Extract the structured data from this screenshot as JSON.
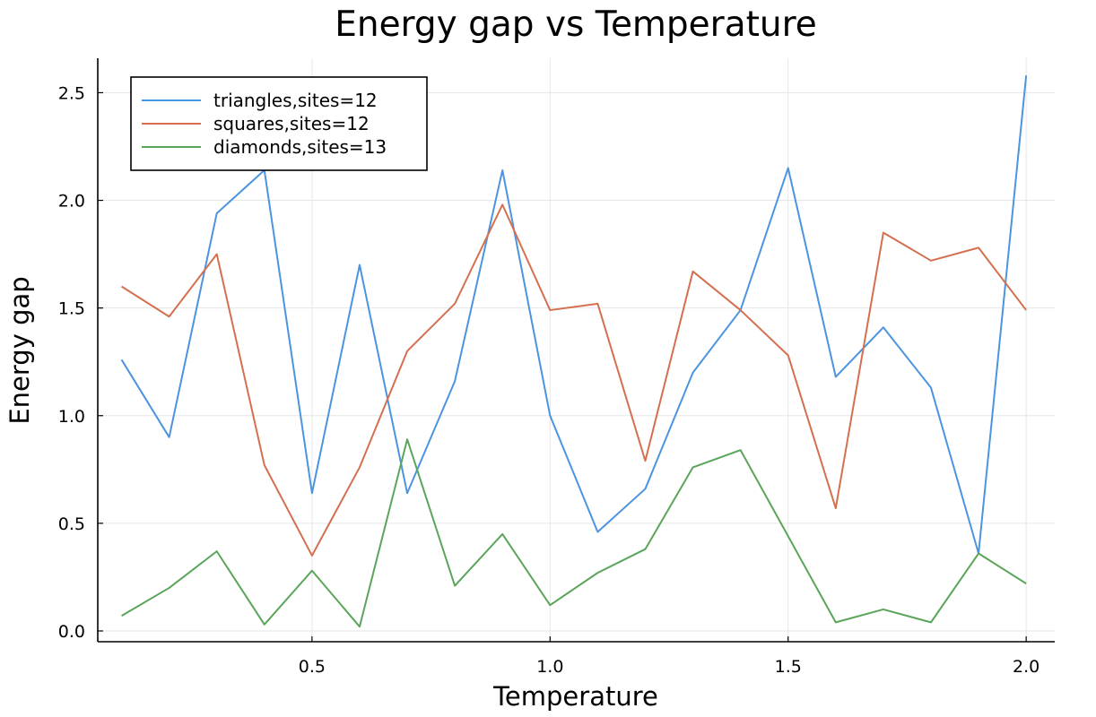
{
  "chart_data": {
    "type": "line",
    "title": "Energy gap vs Temperature",
    "xlabel": "Temperature",
    "ylabel": "Energy gap",
    "xlim": [
      0.05,
      2.06
    ],
    "ylim": [
      -0.05,
      2.66
    ],
    "x_ticks": [
      0.5,
      1.0,
      1.5,
      2.0
    ],
    "x_tick_labels": [
      "0.5",
      "1.0",
      "1.5",
      "2.0"
    ],
    "y_ticks": [
      0.0,
      0.5,
      1.0,
      1.5,
      2.0,
      2.5
    ],
    "y_tick_labels": [
      "0.0",
      "0.5",
      "1.0",
      "1.5",
      "2.0",
      "2.5"
    ],
    "grid": true,
    "legend_position": "top-left",
    "x": [
      0.1,
      0.2,
      0.3,
      0.4,
      0.5,
      0.6,
      0.7,
      0.8,
      0.9,
      1.0,
      1.1,
      1.2,
      1.3,
      1.4,
      1.5,
      1.6,
      1.7,
      1.8,
      1.9,
      2.0
    ],
    "series": [
      {
        "name": "triangles,sites=12",
        "color": "#4c94e0",
        "values": [
          1.26,
          0.9,
          1.94,
          2.14,
          0.64,
          1.7,
          0.64,
          1.16,
          2.14,
          1.0,
          0.46,
          0.66,
          1.2,
          1.49,
          2.15,
          1.18,
          1.41,
          1.13,
          0.36,
          2.58
        ]
      },
      {
        "name": "squares,sites=12",
        "color": "#d4704f",
        "values": [
          1.6,
          1.46,
          1.75,
          0.77,
          0.35,
          0.76,
          1.3,
          1.52,
          1.98,
          1.49,
          1.52,
          0.79,
          1.67,
          1.49,
          1.28,
          0.57,
          1.85,
          1.72,
          1.78,
          1.49
        ]
      },
      {
        "name": "diamonds,sites=13",
        "color": "#5aa55a",
        "values": [
          0.07,
          0.2,
          0.37,
          0.03,
          0.28,
          0.02,
          0.89,
          0.21,
          0.45,
          0.12,
          0.27,
          0.38,
          0.76,
          0.84,
          0.44,
          0.04,
          0.1,
          0.04,
          0.36,
          0.22
        ]
      }
    ]
  }
}
